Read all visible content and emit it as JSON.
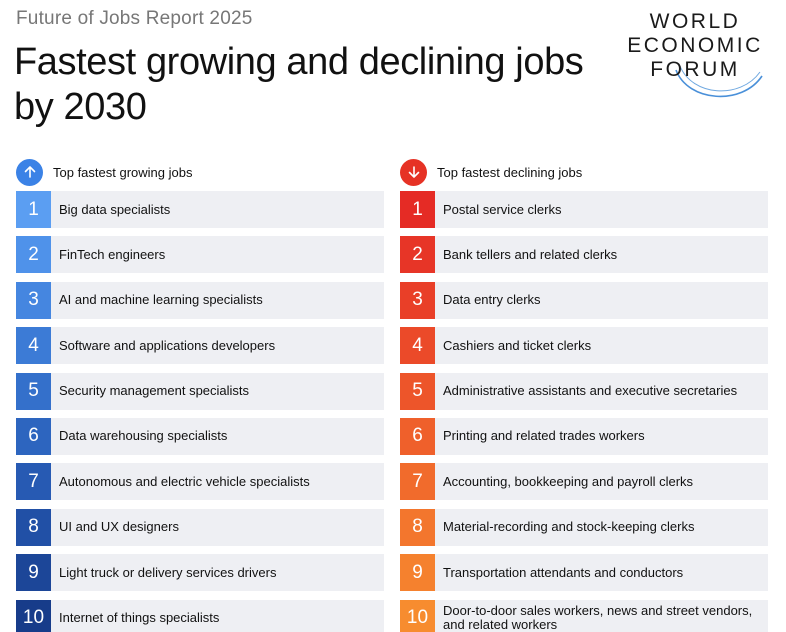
{
  "header": {
    "report_name": "Future of Jobs Report 2025",
    "title": "Fastest growing and declining jobs by 2030"
  },
  "logo": {
    "line1": "WORLD",
    "line2": "ECONOMIC",
    "line3": "FORUM",
    "icon": "wef-arc-logo"
  },
  "growing": {
    "heading": "Top fastest growing jobs",
    "icon": "arrow-up-icon",
    "accent": "#3b82e6",
    "items": [
      {
        "rank": "1",
        "label": "Big data specialists",
        "color": "#5b9ef2"
      },
      {
        "rank": "2",
        "label": "FinTech engineers",
        "color": "#4f92ea"
      },
      {
        "rank": "3",
        "label": "AI and machine learning specialists",
        "color": "#4586e0"
      },
      {
        "rank": "4",
        "label": "Software and applications developers",
        "color": "#3c7bd6"
      },
      {
        "rank": "5",
        "label": "Security management specialists",
        "color": "#3470cb"
      },
      {
        "rank": "6",
        "label": "Data warehousing specialists",
        "color": "#2d65bf"
      },
      {
        "rank": "7",
        "label": "Autonomous and electric vehicle specialists",
        "color": "#275ab3"
      },
      {
        "rank": "8",
        "label": "UI and UX designers",
        "color": "#2150a6"
      },
      {
        "rank": "9",
        "label": "Light truck or delivery services drivers",
        "color": "#1c4698"
      },
      {
        "rank": "10",
        "label": "Internet of things specialists",
        "color": "#173c8a"
      }
    ]
  },
  "declining": {
    "heading": "Top fastest declining jobs",
    "icon": "arrow-down-icon",
    "accent": "#e63225",
    "items": [
      {
        "rank": "1",
        "label": "Postal service clerks",
        "color": "#e52b25"
      },
      {
        "rank": "2",
        "label": "Bank tellers and related clerks",
        "color": "#e73527"
      },
      {
        "rank": "3",
        "label": "Data entry clerks",
        "color": "#e93f28"
      },
      {
        "rank": "4",
        "label": "Cashiers and ticket clerks",
        "color": "#eb4a29"
      },
      {
        "rank": "5",
        "label": "Administrative assistants and executive secretaries",
        "color": "#ed552a"
      },
      {
        "rank": "6",
        "label": "Printing and related trades workers",
        "color": "#ef602b"
      },
      {
        "rank": "7",
        "label": "Accounting, bookkeeping and payroll clerks",
        "color": "#f16b2c"
      },
      {
        "rank": "8",
        "label": "Material-recording and stock-keeping clerks",
        "color": "#f3762d"
      },
      {
        "rank": "9",
        "label": "Transportation attendants and conductors",
        "color": "#f5812e"
      },
      {
        "rank": "10",
        "label": "Door-to-door sales workers, news and street vendors, and related workers",
        "color": "#f78c2f"
      }
    ]
  }
}
